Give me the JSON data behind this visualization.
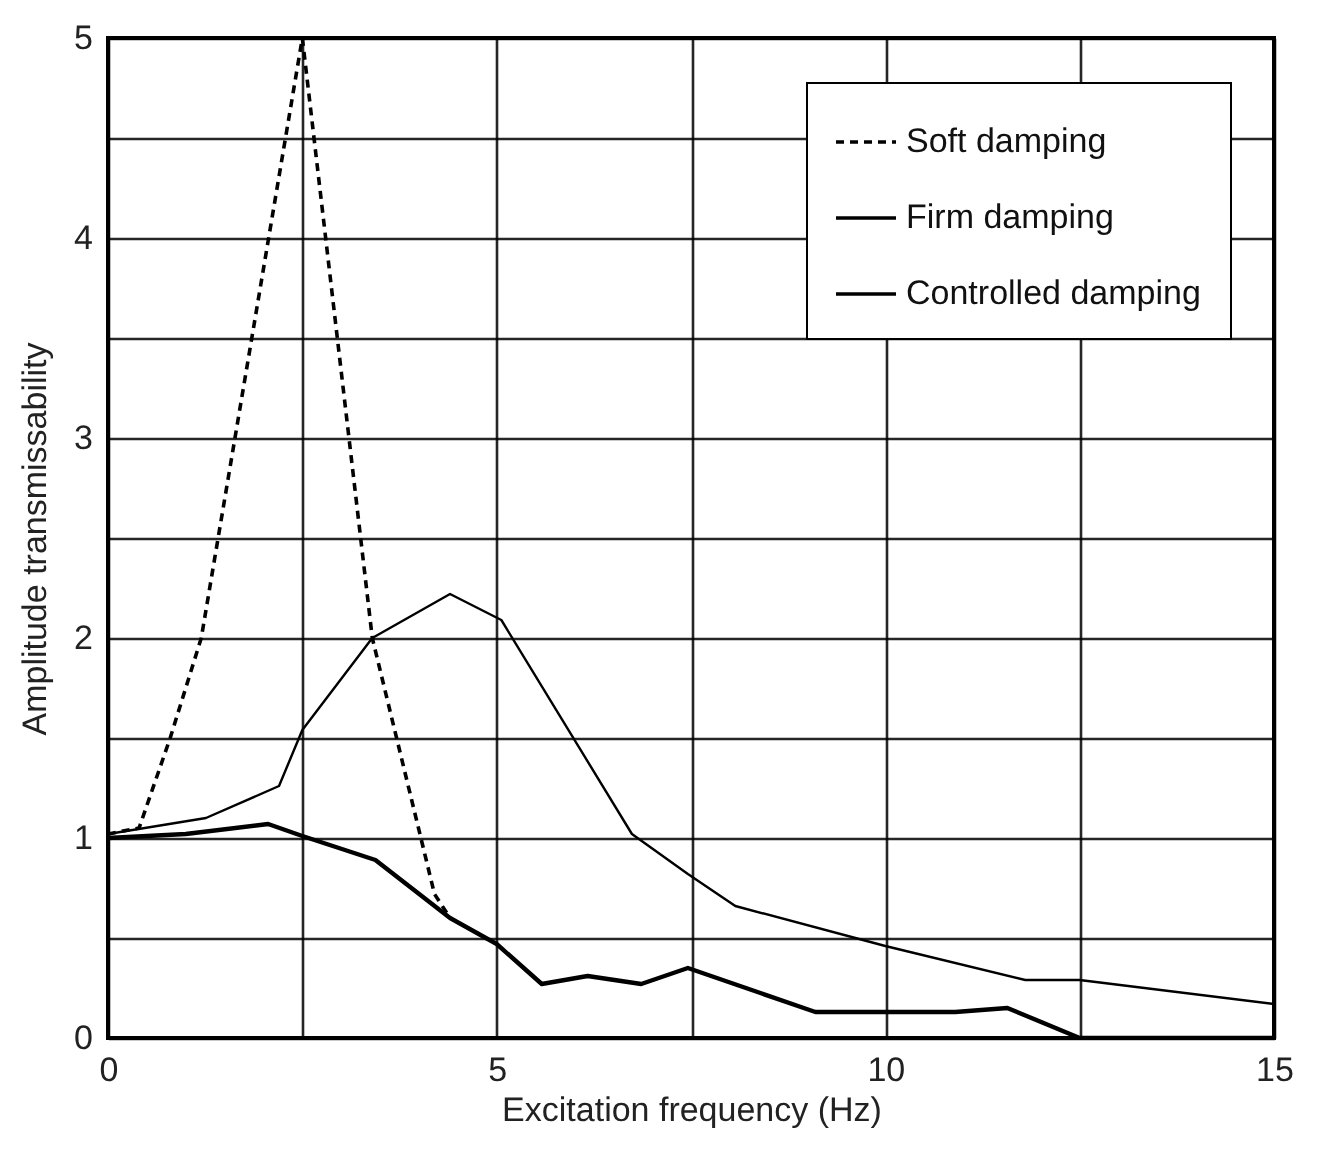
{
  "chart_data": {
    "type": "line",
    "xlabel": "Excitation frequency (Hz)",
    "ylabel": "Amplitude transmissability",
    "xlim": [
      0,
      15
    ],
    "ylim": [
      0,
      5
    ],
    "xticks": [
      0,
      {
        "value": 2.5,
        "label": null
      },
      5,
      {
        "value": 7.5,
        "label": null
      },
      10,
      {
        "value": 12.5,
        "label": null
      },
      15
    ],
    "yticks": [
      0,
      {
        "value": 0.5,
        "label": null
      },
      1,
      {
        "value": 1.5,
        "label": null
      },
      2,
      {
        "value": 2.5,
        "label": null
      },
      3,
      {
        "value": 3.5,
        "label": null
      },
      4,
      {
        "value": 4.5,
        "label": null
      },
      5
    ],
    "grid": true,
    "legend": "top right",
    "series": [
      {
        "name": "Soft  damping",
        "color": "#000000",
        "line_style": "dashed",
        "x": [
          0,
          0.4,
          0.8,
          1.2,
          2.5,
          3.4,
          4.2,
          4.4
        ],
        "values": [
          1.02,
          1.05,
          1.5,
          2.0,
          5.0,
          2.0,
          0.72,
          0.6
        ]
      },
      {
        "name": "Firm damping",
        "color": "#000000",
        "line_style": "solid",
        "x": [
          0,
          1.26,
          2.2,
          2.5,
          3.4,
          4.4,
          5.06,
          6.74,
          7.46,
          8.07,
          10,
          11.8,
          12.5,
          15
        ],
        "values": [
          1.02,
          1.1,
          1.26,
          1.54,
          2.0,
          2.22,
          2.09,
          1.02,
          0.82,
          0.66,
          0.46,
          0.29,
          0.29,
          0.17
        ]
      },
      {
        "name": "Controlled damping",
        "color": "#000000",
        "line_style": "solid",
        "x": [
          0,
          1,
          2.06,
          2.5,
          3.44,
          4.4,
          5,
          5.58,
          6.17,
          6.86,
          7.46,
          9.1,
          10.9,
          11.57,
          12.5,
          15
        ],
        "values": [
          1,
          1.02,
          1.07,
          1.01,
          0.89,
          0.6,
          0.47,
          0.27,
          0.31,
          0.27,
          0.35,
          0.13,
          0.13,
          0.15,
          0,
          0
        ]
      }
    ]
  }
}
